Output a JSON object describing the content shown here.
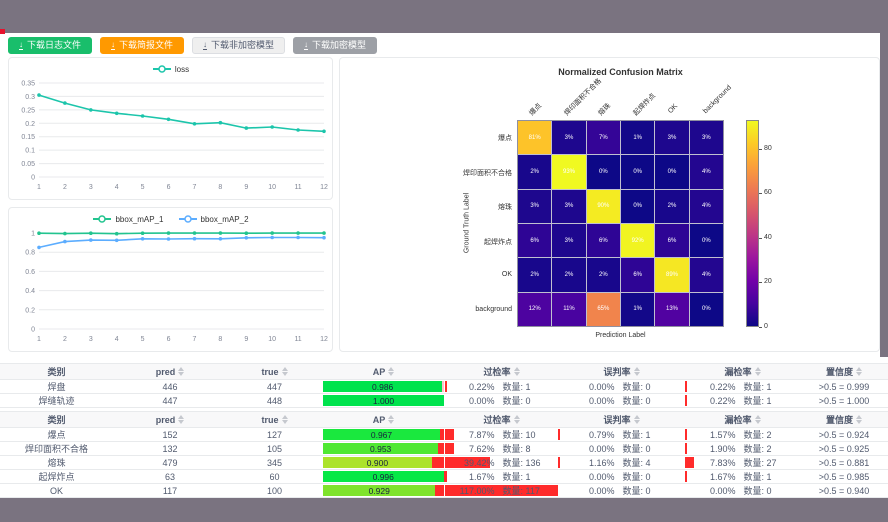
{
  "chrome": {
    "bar_color": "#7a7380",
    "record_dot_color": "#e8112d"
  },
  "toolbar": {
    "buttons": [
      {
        "label": "下载日志文件",
        "variant": "green",
        "color": "#19be6b"
      },
      {
        "label": "下载简报文件",
        "variant": "orange",
        "color": "#ff9900"
      },
      {
        "label": "下载非加密模型",
        "variant": "plain",
        "color": "#ffffff"
      },
      {
        "label": "下载加密模型",
        "variant": "gray",
        "color": "#9da0a6"
      }
    ]
  },
  "chart_data": [
    {
      "type": "line",
      "title": "",
      "legend_position": "top",
      "grid": true,
      "x": [
        1,
        2,
        3,
        4,
        5,
        6,
        7,
        8,
        9,
        10,
        11,
        12
      ],
      "series": [
        {
          "name": "loss",
          "color": "#1cc5ab",
          "values": [
            0.305,
            0.275,
            0.25,
            0.237,
            0.227,
            0.215,
            0.198,
            0.202,
            0.182,
            0.186,
            0.175,
            0.17
          ]
        }
      ],
      "xlabel": "",
      "ylabel": "",
      "ylim": [
        0,
        0.35
      ],
      "yticks": [
        0,
        0.05,
        0.1,
        0.15,
        0.2,
        0.25,
        0.3,
        0.35
      ]
    },
    {
      "type": "line",
      "title": "",
      "legend_position": "top",
      "grid": true,
      "x": [
        1,
        2,
        3,
        4,
        5,
        6,
        7,
        8,
        9,
        10,
        11,
        12
      ],
      "series": [
        {
          "name": "bbox_mAP_1",
          "color": "#22c48f",
          "values": [
            0.998,
            0.994,
            0.998,
            0.993,
            0.998,
            0.999,
            0.999,
            0.999,
            0.998,
            0.999,
            0.999,
            0.999
          ]
        },
        {
          "name": "bbox_mAP_2",
          "color": "#5cadff",
          "values": [
            0.85,
            0.91,
            0.926,
            0.924,
            0.94,
            0.937,
            0.941,
            0.94,
            0.95,
            0.953,
            0.953,
            0.951
          ]
        }
      ],
      "xlabel": "",
      "ylabel": "",
      "ylim": [
        0,
        1
      ],
      "yticks": [
        0,
        0.2,
        0.4,
        0.6,
        0.8,
        1
      ]
    },
    {
      "type": "heatmap",
      "title": "Normalized Confusion Matrix",
      "xlabel": "Prediction Label",
      "ylabel": "Ground Truth Label",
      "categories": [
        "爆点",
        "焊印面积不合格",
        "熔珠",
        "起焊炸点",
        "OK",
        "background"
      ],
      "values_percent": [
        [
          81,
          3,
          7,
          1,
          3,
          3
        ],
        [
          2,
          93,
          0,
          0,
          0,
          4
        ],
        [
          3,
          3,
          90,
          0,
          2,
          4
        ],
        [
          6,
          3,
          6,
          92,
          6,
          0
        ],
        [
          2,
          2,
          2,
          6,
          89,
          4
        ],
        [
          12,
          11,
          65,
          1,
          13,
          0
        ]
      ],
      "vmax": 93,
      "colormap": "plasma",
      "colorbar_ticks": [
        0,
        20,
        40,
        60,
        80
      ]
    }
  ],
  "tables": [
    {
      "headers": [
        {
          "label": "类别",
          "sortable": false
        },
        {
          "label": "pred",
          "sortable": true
        },
        {
          "label": "true",
          "sortable": true
        },
        {
          "label": "AP",
          "sortable": true
        },
        {
          "label": "过检率",
          "sortable": true
        },
        {
          "label": "误判率",
          "sortable": true
        },
        {
          "label": "漏检率",
          "sortable": true
        },
        {
          "label": "置信度",
          "sortable": true
        }
      ],
      "rows": [
        {
          "category": "焊盘",
          "pred": "446",
          "true": "447",
          "ap": {
            "value": 0.986,
            "label": "0.986",
            "color": "#00e34d",
            "rest_color": "#ffc2cc"
          },
          "over": {
            "pct": "0.22%",
            "count": "数量: 1",
            "bar": 0.004
          },
          "mis": {
            "pct": "0.00%",
            "count": "数量: 0",
            "bar": 0
          },
          "miss": {
            "pct": "0.22%",
            "count": "数量: 1",
            "bar": 0.004
          },
          "confidence": ">0.5 = 0.999"
        },
        {
          "category": "焊缝轨迹",
          "pred": "447",
          "true": "448",
          "ap": {
            "value": 1.0,
            "label": "1.000",
            "color": "#00e34d",
            "rest_color": "#ffc2cc"
          },
          "over": {
            "pct": "0.00%",
            "count": "数量: 0",
            "bar": 0
          },
          "mis": {
            "pct": "0.00%",
            "count": "数量: 0",
            "bar": 0
          },
          "miss": {
            "pct": "0.22%",
            "count": "数量: 1",
            "bar": 0.004
          },
          "confidence": ">0.5 = 1.000"
        }
      ]
    },
    {
      "headers": [
        {
          "label": "类别",
          "sortable": false
        },
        {
          "label": "pred",
          "sortable": true
        },
        {
          "label": "true",
          "sortable": true
        },
        {
          "label": "AP",
          "sortable": true
        },
        {
          "label": "过检率",
          "sortable": true
        },
        {
          "label": "误判率",
          "sortable": true
        },
        {
          "label": "漏检率",
          "sortable": true
        },
        {
          "label": "置信度",
          "sortable": true
        }
      ],
      "rows": [
        {
          "category": "爆点",
          "pred": "152",
          "true": "127",
          "ap": {
            "value": 0.967,
            "label": "0.967",
            "color": "#1ae83e",
            "rest_color": "#ff2b2b"
          },
          "over": {
            "pct": "7.87%",
            "count": "数量: 10",
            "bar": 0.079
          },
          "mis": {
            "pct": "0.79%",
            "count": "数量: 1",
            "bar": 0.008
          },
          "miss": {
            "pct": "1.57%",
            "count": "数量: 2",
            "bar": 0.016
          },
          "confidence": ">0.5 = 0.924"
        },
        {
          "category": "焊印面积不合格",
          "pred": "132",
          "true": "105",
          "ap": {
            "value": 0.953,
            "label": "0.953",
            "color": "#4fe832",
            "rest_color": "#ff2b2b"
          },
          "over": {
            "pct": "7.62%",
            "count": "数量: 8",
            "bar": 0.076
          },
          "mis": {
            "pct": "0.00%",
            "count": "数量: 0",
            "bar": 0
          },
          "miss": {
            "pct": "1.90%",
            "count": "数量: 2",
            "bar": 0.019
          },
          "confidence": ">0.5 = 0.925"
        },
        {
          "category": "熔珠",
          "pred": "479",
          "true": "345",
          "ap": {
            "value": 0.9,
            "label": "0.900",
            "color": "#ace32a",
            "rest_color": "#ff2b2b"
          },
          "over": {
            "pct": "39.42%",
            "count": "数量: 136",
            "bar": 0.394
          },
          "mis": {
            "pct": "1.16%",
            "count": "数量: 4",
            "bar": 0.012
          },
          "miss": {
            "pct": "7.83%",
            "count": "数量: 27",
            "bar": 0.078
          },
          "confidence": ">0.5 = 0.881"
        },
        {
          "category": "起焊炸点",
          "pred": "63",
          "true": "60",
          "ap": {
            "value": 0.996,
            "label": "0.996",
            "color": "#06e846",
            "rest_color": "#ff2b2b"
          },
          "over": {
            "pct": "1.67%",
            "count": "数量: 1",
            "bar": 0.017
          },
          "mis": {
            "pct": "0.00%",
            "count": "数量: 0",
            "bar": 0
          },
          "miss": {
            "pct": "1.67%",
            "count": "数量: 1",
            "bar": 0.017
          },
          "confidence": ">0.5 = 0.985"
        },
        {
          "category": "OK",
          "pred": "117",
          "true": "100",
          "ap": {
            "value": 0.929,
            "label": "0.929",
            "color": "#7fe32c",
            "rest_color": "#ff2b2b"
          },
          "over": {
            "pct": "117.00%",
            "count": "数量: 117",
            "bar": 1.0
          },
          "mis": {
            "pct": "0.00%",
            "count": "数量: 0",
            "bar": 0
          },
          "miss": {
            "pct": "0.00%",
            "count": "数量: 0",
            "bar": 0
          },
          "confidence": ">0.5 = 0.940"
        }
      ]
    }
  ]
}
